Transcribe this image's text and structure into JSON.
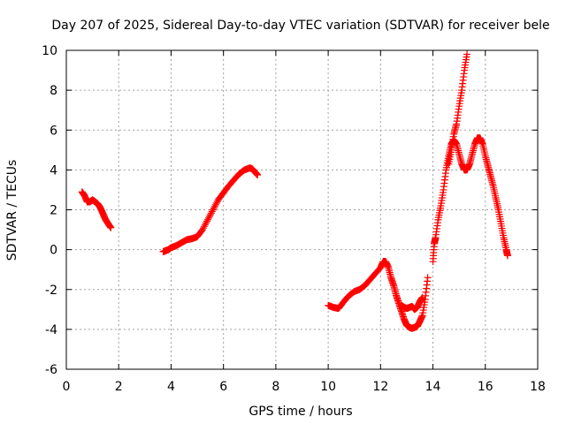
{
  "chart_data": {
    "type": "scatter",
    "title": "Day 207 of 2025, Sidereal Day-to-day VTEC variation (SDTVAR) for receiver bele",
    "xlabel": "GPS time / hours",
    "ylabel": "SDTVAR / TECUs",
    "xlim": [
      0,
      18
    ],
    "ylim": [
      -6,
      10
    ],
    "xticks": [
      0,
      2,
      4,
      6,
      8,
      10,
      12,
      14,
      16,
      18
    ],
    "yticks": [
      -6,
      -4,
      -2,
      0,
      2,
      4,
      6,
      8,
      10
    ],
    "grid": true,
    "legend": "none",
    "colors": {
      "series": "#ff0000",
      "grid": "#a0a0a0",
      "axes": "#000000"
    },
    "series": [
      {
        "name": "SDTVAR",
        "marker": "plus",
        "segments": [
          [
            [
              0.6,
              2.9
            ],
            [
              0.7,
              2.7
            ],
            [
              0.8,
              2.4
            ],
            [
              0.9,
              2.4
            ],
            [
              1.0,
              2.5
            ],
            [
              1.1,
              2.4
            ],
            [
              1.2,
              2.3
            ],
            [
              1.3,
              2.1
            ],
            [
              1.4,
              1.8
            ],
            [
              1.5,
              1.5
            ],
            [
              1.6,
              1.3
            ],
            [
              1.7,
              1.1
            ]
          ],
          [
            [
              3.7,
              -0.1
            ],
            [
              3.8,
              -0.05
            ],
            [
              3.9,
              0.0
            ],
            [
              4.0,
              0.1
            ],
            [
              4.2,
              0.2
            ],
            [
              4.4,
              0.35
            ],
            [
              4.6,
              0.5
            ],
            [
              4.8,
              0.55
            ],
            [
              5.0,
              0.65
            ],
            [
              5.2,
              1.0
            ],
            [
              5.4,
              1.5
            ],
            [
              5.6,
              2.0
            ],
            [
              5.8,
              2.5
            ],
            [
              6.0,
              2.85
            ],
            [
              6.2,
              3.2
            ],
            [
              6.4,
              3.5
            ],
            [
              6.6,
              3.8
            ],
            [
              6.8,
              4.0
            ],
            [
              7.0,
              4.1
            ],
            [
              7.1,
              4.05
            ],
            [
              7.2,
              3.9
            ],
            [
              7.3,
              3.75
            ]
          ],
          [
            [
              10.0,
              -2.8
            ],
            [
              10.2,
              -2.9
            ],
            [
              10.4,
              -2.95
            ],
            [
              10.6,
              -2.6
            ],
            [
              10.8,
              -2.3
            ],
            [
              11.0,
              -2.1
            ],
            [
              11.2,
              -2.0
            ],
            [
              11.4,
              -1.8
            ],
            [
              11.6,
              -1.5
            ],
            [
              11.8,
              -1.2
            ],
            [
              12.0,
              -0.9
            ],
            [
              12.1,
              -0.6
            ],
            [
              12.2,
              -0.6
            ],
            [
              12.3,
              -0.9
            ],
            [
              12.4,
              -1.4
            ],
            [
              12.5,
              -1.8
            ],
            [
              12.6,
              -2.3
            ],
            [
              12.7,
              -2.7
            ],
            [
              12.8,
              -3.1
            ],
            [
              12.9,
              -3.5
            ],
            [
              13.0,
              -3.8
            ],
            [
              13.1,
              -3.9
            ],
            [
              13.2,
              -3.95
            ],
            [
              13.3,
              -3.9
            ],
            [
              13.4,
              -3.85
            ],
            [
              13.5,
              -3.6
            ],
            [
              13.6,
              -3.3
            ],
            [
              13.7,
              -2.5
            ],
            [
              13.8,
              -1.4
            ]
          ],
          [
            [
              12.8,
              -2.8
            ],
            [
              12.9,
              -2.9
            ],
            [
              13.0,
              -2.95
            ],
            [
              13.1,
              -2.9
            ],
            [
              13.2,
              -2.85
            ],
            [
              13.3,
              -3.0
            ],
            [
              13.4,
              -2.9
            ],
            [
              13.5,
              -2.6
            ],
            [
              13.6,
              -2.4
            ]
          ],
          [
            [
              14.0,
              -0.6
            ],
            [
              14.05,
              0.3
            ],
            [
              14.1,
              0.6
            ],
            [
              14.2,
              1.5
            ],
            [
              14.3,
              2.2
            ],
            [
              14.4,
              3.0
            ],
            [
              14.5,
              4.0
            ],
            [
              14.6,
              4.7
            ],
            [
              14.7,
              5.3
            ],
            [
              14.8,
              5.5
            ],
            [
              14.9,
              5.3
            ],
            [
              15.0,
              4.8
            ],
            [
              15.1,
              4.3
            ],
            [
              15.2,
              4.0
            ],
            [
              15.3,
              4.0
            ],
            [
              15.4,
              4.3
            ],
            [
              15.5,
              4.8
            ],
            [
              15.6,
              5.3
            ],
            [
              15.7,
              5.6
            ],
            [
              15.8,
              5.6
            ],
            [
              15.9,
              5.3
            ],
            [
              16.0,
              4.7
            ],
            [
              16.1,
              4.2
            ],
            [
              16.2,
              3.7
            ],
            [
              16.3,
              3.2
            ],
            [
              16.4,
              2.6
            ],
            [
              16.5,
              2.0
            ],
            [
              16.6,
              1.3
            ],
            [
              16.7,
              0.6
            ],
            [
              16.8,
              0.0
            ],
            [
              16.85,
              -0.3
            ]
          ],
          [
            [
              14.6,
              4.3
            ],
            [
              14.7,
              5.0
            ],
            [
              14.8,
              5.8
            ],
            [
              14.9,
              6.3
            ],
            [
              15.0,
              7.2
            ],
            [
              15.1,
              8.0
            ],
            [
              15.2,
              9.0
            ],
            [
              15.3,
              9.8
            ]
          ]
        ]
      }
    ]
  }
}
